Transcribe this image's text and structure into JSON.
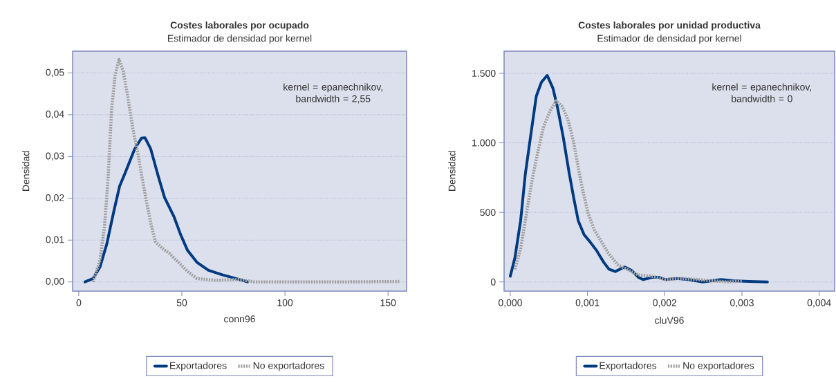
{
  "chart_data": [
    {
      "type": "line",
      "title": "Costes laborales por ocupado",
      "subtitle": "Estimador de densidad por kernel",
      "xlabel": "conn96",
      "ylabel": "Densidad",
      "annotations": [
        "kernel = epanechnikov, bandwidth = 2,55"
      ],
      "xlim": [
        -3,
        159
      ],
      "ylim": [
        -0.0022,
        0.0552
      ],
      "xticks": [
        0,
        50,
        100,
        150
      ],
      "yticks": [
        {
          "value": 0,
          "label": "0,00"
        },
        {
          "value": 0.01,
          "label": "0,01"
        },
        {
          "value": 0.02,
          "label": "0,02"
        },
        {
          "value": 0.03,
          "label": "0,03"
        },
        {
          "value": 0.04,
          "label": "0,04"
        },
        {
          "value": 0.05,
          "label": "0,05"
        }
      ],
      "grid": "y",
      "legend": "bottom",
      "series": [
        {
          "name": "Exportadores",
          "color": "#003a80",
          "line_style": "solid",
          "x": [
            3.0,
            6.9,
            10.3,
            13.6,
            17.0,
            19.8,
            22.6,
            27.1,
            30.4,
            32.1,
            34.9,
            38.3,
            41.6,
            46.1,
            49.4,
            52.8,
            57.3,
            62.9,
            69.6,
            76.3,
            81.9
          ],
          "values": [
            0,
            0.0008,
            0.0036,
            0.0091,
            0.0169,
            0.0229,
            0.0262,
            0.0318,
            0.0344,
            0.0345,
            0.0318,
            0.0257,
            0.0202,
            0.0157,
            0.0113,
            0.0075,
            0.0047,
            0.0028,
            0.0017,
            0.0008,
            0
          ]
        },
        {
          "name": "No exportadores",
          "color": "#a0a0a0",
          "line_style": "dotted",
          "x": [
            6.9,
            10.3,
            12.5,
            14.2,
            15.9,
            17.6,
            19.5,
            21.5,
            23.9,
            26.2,
            28.5,
            30.4,
            32.7,
            34.9,
            37.1,
            40.5,
            43.8,
            48.3,
            52.8,
            57.3,
            66.2,
            77.4,
            85.2,
            94.2,
            105.4,
            127.7,
            155.7
          ],
          "values": [
            0,
            0.0052,
            0.0135,
            0.0246,
            0.0412,
            0.0494,
            0.0532,
            0.0506,
            0.0439,
            0.0367,
            0.0312,
            0.0257,
            0.0196,
            0.0141,
            0.0097,
            0.008,
            0.0069,
            0.0047,
            0.0025,
            0.0008,
            0.0004,
            0.0006,
            0,
            0,
            0,
            0,
            0.0001
          ]
        }
      ]
    },
    {
      "type": "line",
      "title": "Costes laborales por unidad productiva",
      "subtitle": "Estimador de densidad por kernel",
      "xlabel": "cluV96",
      "ylabel": "Densidad",
      "annotations": [
        "kernel = epanechnikov, bandwidth = 0"
      ],
      "xlim": [
        -8e-05,
        0.0042
      ],
      "ylim": [
        -66,
        1659
      ],
      "xticks": [
        {
          "value": 0,
          "label": "0,000"
        },
        {
          "value": 0.001,
          "label": "0,001"
        },
        {
          "value": 0.002,
          "label": "0,002"
        },
        {
          "value": 0.003,
          "label": "0,003"
        },
        {
          "value": 0.004,
          "label": "0,004"
        }
      ],
      "yticks": [
        0,
        500,
        {
          "value": 1000,
          "label": "1.000"
        },
        {
          "value": 1500,
          "label": "1.500"
        }
      ],
      "grid": "y",
      "legend": "bottom",
      "series": [
        {
          "name": "Exportadores",
          "color": "#003a80",
          "line_style": "solid",
          "x": [
            0,
            6e-05,
            0.000134,
            0.000194,
            0.000269,
            0.000337,
            0.000403,
            0.000478,
            0.000552,
            0.000612,
            0.000687,
            0.000761,
            0.000821,
            0.00088,
            0.000955,
            0.00103,
            0.00112,
            0.00121,
            0.00128,
            0.00136,
            0.00148,
            0.00157,
            0.00166,
            0.00172,
            0.00184,
            0.00193,
            0.00201,
            0.00216,
            0.00231,
            0.00249,
            0.00273,
            0.00288,
            0.00309,
            0.00333
          ],
          "values": [
            41,
            174,
            440,
            772,
            1070,
            1336,
            1435,
            1485,
            1394,
            1253,
            1037,
            788,
            606,
            440,
            340,
            290,
            224,
            141,
            91,
            75,
            108,
            83,
            33,
            17,
            33,
            33,
            17,
            25,
            17,
            0,
            17,
            8,
            3,
            0
          ]
        },
        {
          "name": "No exportadores",
          "color": "#a0a0a0",
          "line_style": "dotted",
          "x": [
            6e-05,
            0.000134,
            0.000209,
            0.000284,
            0.000358,
            0.000433,
            0.000522,
            0.000597,
            0.000672,
            0.000746,
            0.000821,
            0.00088,
            0.00094,
            0.00101,
            0.00109,
            0.00118,
            0.00127,
            0.00139,
            0.00151,
            0.00166,
            0.00184,
            0.00201,
            0.00222,
            0.00243,
            0.00261,
            0.00282,
            0.00301
          ],
          "values": [
            91,
            241,
            489,
            738,
            937,
            1120,
            1236,
            1302,
            1261,
            1170,
            1004,
            821,
            655,
            489,
            373,
            290,
            207,
            124,
            91,
            50,
            41,
            17,
            25,
            17,
            8,
            0,
            8
          ]
        }
      ]
    }
  ]
}
